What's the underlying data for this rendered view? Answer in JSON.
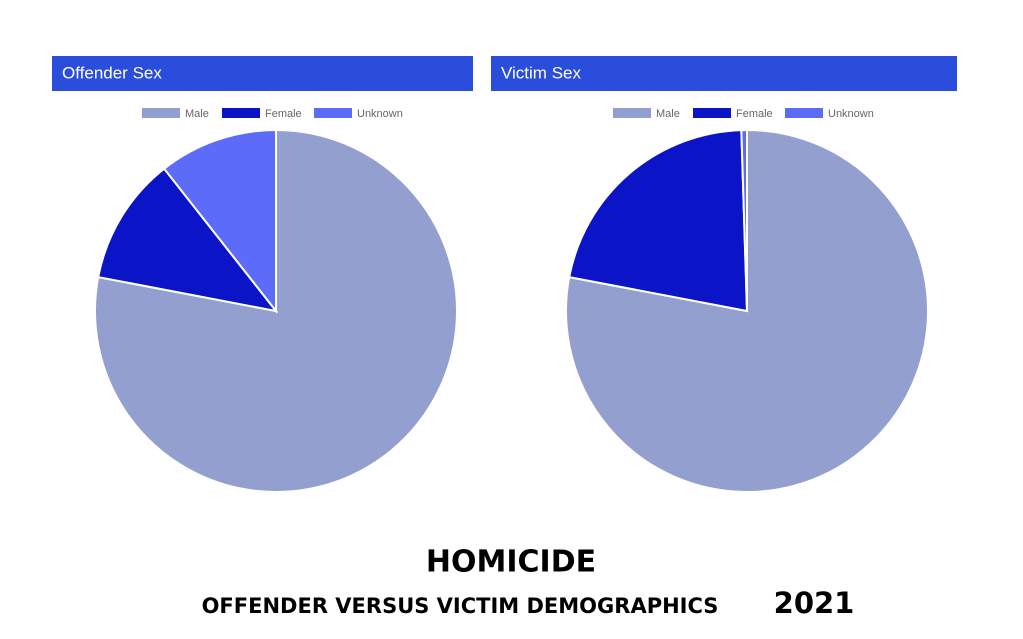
{
  "chart_data": [
    {
      "type": "pie",
      "title": "Offender Sex",
      "categories": [
        "Male",
        "Female",
        "Unknown"
      ],
      "values": [
        78,
        11.4,
        10.6
      ],
      "colors": [
        "#93a0cf",
        "#0c14c8",
        "#5c6cf8"
      ]
    },
    {
      "type": "pie",
      "title": "Victim Sex",
      "categories": [
        "Male",
        "Female",
        "Unknown"
      ],
      "values": [
        78,
        21.5,
        0.5
      ],
      "colors": [
        "#93a0cf",
        "#0c14c8",
        "#5c6cf8"
      ]
    }
  ],
  "footer": {
    "title": "HOMICIDE",
    "subtitle": "OFFENDER VERSUS VICTIM DEMOGRAPHICS",
    "year": "2021"
  }
}
